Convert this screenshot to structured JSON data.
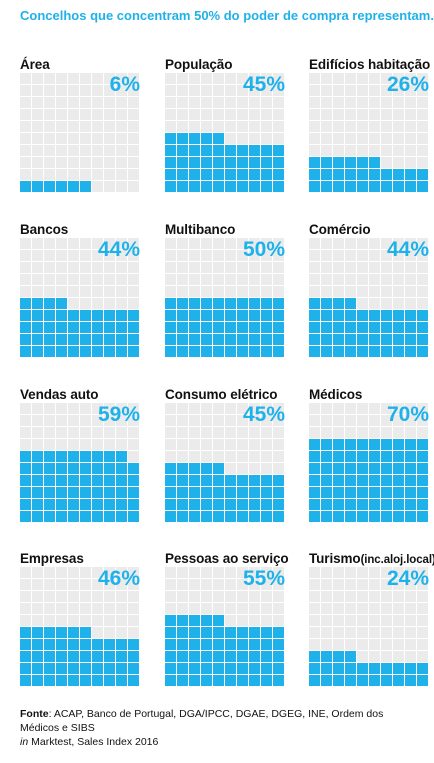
{
  "title": "Concelhos que concentram 50% do poder de compra representam..",
  "colors": {
    "accent": "#1fb1ea",
    "empty": "#ebebeb"
  },
  "chart_data": {
    "type": "waffle",
    "grid": {
      "rows": 10,
      "cols": 10
    },
    "unit": "%",
    "panels": [
      {
        "label": "Área",
        "value": 6,
        "value_label": "6%"
      },
      {
        "label": "População",
        "value": 45,
        "value_label": "45%"
      },
      {
        "label": "Edifícios habitação",
        "value": 26,
        "value_label": "26%"
      },
      {
        "label": "Bancos",
        "value": 44,
        "value_label": "44%"
      },
      {
        "label": "Multibanco",
        "value": 50,
        "value_label": "50%"
      },
      {
        "label": "Comércio",
        "value": 44,
        "value_label": "44%"
      },
      {
        "label": "Vendas auto",
        "value": 59,
        "value_label": "59%"
      },
      {
        "label": "Consumo elétrico",
        "value": 45,
        "value_label": "45%"
      },
      {
        "label": "Médicos",
        "value": 70,
        "value_label": "70%"
      },
      {
        "label": "Empresas",
        "value": 46,
        "value_label": "46%"
      },
      {
        "label": "Pessoas ao serviço",
        "value": 55,
        "value_label": "55%"
      },
      {
        "label": "Turismo",
        "label_suffix": "(inc.aloj.local)",
        "value": 24,
        "value_label": "24%"
      }
    ]
  },
  "footer": {
    "source_label": "Fonte",
    "source_text": ": ACAP, Banco de Portugal, DGA/IPCC, DGAE, DGEG, INE, Ordem dos Médicos e SIBS",
    "in_label": "in",
    "in_text": " Marktest, Sales Index 2016"
  }
}
